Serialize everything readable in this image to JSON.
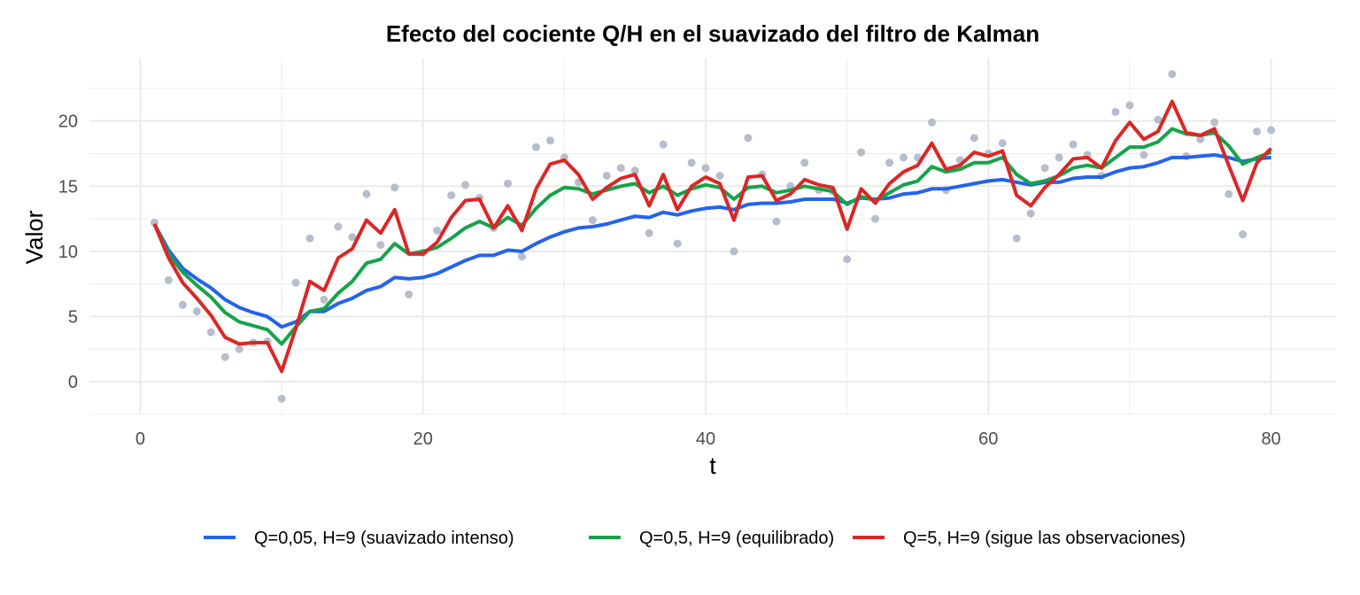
{
  "chart_data": {
    "type": "line",
    "title": "Efecto del cociente Q/H en el suavizado del filtro de Kalman",
    "xlabel": "t",
    "ylabel": "Valor",
    "xlim": [
      -3.6,
      84.6
    ],
    "ylim": [
      -2.5,
      24.8
    ],
    "xticks": [
      0,
      20,
      40,
      60,
      80
    ],
    "yticks": [
      0,
      5,
      10,
      15,
      20
    ],
    "grid": true,
    "legend_position": "bottom",
    "colors": {
      "observations": "#b7bdcb",
      "grid": "#ebebeb"
    },
    "observations": {
      "x": [
        1,
        2,
        3,
        4,
        5,
        6,
        7,
        8,
        9,
        10,
        11,
        12,
        13,
        14,
        15,
        16,
        17,
        18,
        19,
        20,
        21,
        22,
        23,
        24,
        25,
        26,
        27,
        28,
        29,
        30,
        31,
        32,
        33,
        34,
        35,
        36,
        37,
        38,
        39,
        40,
        41,
        42,
        43,
        44,
        45,
        46,
        47,
        48,
        49,
        50,
        51,
        52,
        53,
        54,
        55,
        56,
        57,
        58,
        59,
        60,
        61,
        62,
        63,
        64,
        65,
        66,
        67,
        68,
        69,
        70,
        71,
        72,
        73,
        74,
        75,
        76,
        77,
        78,
        79,
        80
      ],
      "y": [
        12.2,
        7.8,
        5.9,
        5.4,
        3.8,
        1.9,
        2.5,
        3.0,
        3.1,
        -1.3,
        7.6,
        11.0,
        6.3,
        11.9,
        11.1,
        14.4,
        10.5,
        14.9,
        6.7,
        9.9,
        11.6,
        14.3,
        15.1,
        14.1,
        11.8,
        15.2,
        9.6,
        18.0,
        18.5,
        17.2,
        15.3,
        12.4,
        15.8,
        16.4,
        16.2,
        11.4,
        18.2,
        10.6,
        16.8,
        16.4,
        15.8,
        10.0,
        18.7,
        15.9,
        12.3,
        15.0,
        16.8,
        14.7,
        14.6,
        9.4,
        17.6,
        12.5,
        16.8,
        17.2,
        17.2,
        19.9,
        14.7,
        17.0,
        18.7,
        17.5,
        18.3,
        11.0,
        12.9,
        16.4,
        17.2,
        18.2,
        17.4,
        15.8,
        20.7,
        21.2,
        17.4,
        20.1,
        23.6,
        17.3,
        18.6,
        19.9,
        14.4,
        11.3,
        19.2,
        19.3
      ]
    },
    "x": [
      1,
      2,
      3,
      4,
      5,
      6,
      7,
      8,
      9,
      10,
      11,
      12,
      13,
      14,
      15,
      16,
      17,
      18,
      19,
      20,
      21,
      22,
      23,
      24,
      25,
      26,
      27,
      28,
      29,
      30,
      31,
      32,
      33,
      34,
      35,
      36,
      37,
      38,
      39,
      40,
      41,
      42,
      43,
      44,
      45,
      46,
      47,
      48,
      49,
      50,
      51,
      52,
      53,
      54,
      55,
      56,
      57,
      58,
      59,
      60,
      61,
      62,
      63,
      64,
      65,
      66,
      67,
      68,
      69,
      70,
      71,
      72,
      73,
      74,
      75,
      76,
      77,
      78,
      79,
      80
    ],
    "series": [
      {
        "name": "Q=0,05, H=9 (suavizado intenso)",
        "color": "#2563eb",
        "values": [
          12.1,
          10.1,
          8.7,
          7.9,
          7.2,
          6.3,
          5.7,
          5.3,
          5.0,
          4.2,
          4.6,
          5.4,
          5.4,
          6.0,
          6.4,
          7.0,
          7.3,
          8.0,
          7.9,
          8.0,
          8.3,
          8.8,
          9.3,
          9.7,
          9.7,
          10.1,
          10.0,
          10.6,
          11.1,
          11.5,
          11.8,
          11.9,
          12.1,
          12.4,
          12.7,
          12.6,
          13.0,
          12.8,
          13.1,
          13.3,
          13.4,
          13.2,
          13.6,
          13.7,
          13.7,
          13.8,
          14.0,
          14.0,
          14.0,
          13.7,
          14.1,
          14.0,
          14.1,
          14.4,
          14.5,
          14.8,
          14.8,
          15.0,
          15.2,
          15.4,
          15.5,
          15.3,
          15.1,
          15.3,
          15.3,
          15.6,
          15.7,
          15.7,
          16.1,
          16.4,
          16.5,
          16.8,
          17.2,
          17.2,
          17.3,
          17.4,
          17.2,
          16.9,
          17.1,
          17.2
        ]
      },
      {
        "name": "Q=0,5, H=9 (equilibrado)",
        "color": "#16a34a",
        "values": [
          12.1,
          9.8,
          8.4,
          7.4,
          6.5,
          5.3,
          4.6,
          4.3,
          4.0,
          2.9,
          4.2,
          5.4,
          5.6,
          6.8,
          7.7,
          9.1,
          9.4,
          10.6,
          9.8,
          10.0,
          10.3,
          11.0,
          11.8,
          12.3,
          11.8,
          12.6,
          12.0,
          13.3,
          14.3,
          14.9,
          14.8,
          14.4,
          14.7,
          15.0,
          15.2,
          14.5,
          15.0,
          14.3,
          14.8,
          15.1,
          14.9,
          14.0,
          14.9,
          15.0,
          14.5,
          14.7,
          15.0,
          14.8,
          14.6,
          13.6,
          14.2,
          13.9,
          14.5,
          15.1,
          15.4,
          16.5,
          16.1,
          16.3,
          16.8,
          16.8,
          17.2,
          15.9,
          15.2,
          15.4,
          15.8,
          16.4,
          16.6,
          16.4,
          17.2,
          18.0,
          18.0,
          18.4,
          19.4,
          19.0,
          18.9,
          19.1,
          18.1,
          16.7,
          17.2,
          17.6
        ]
      },
      {
        "name": "Q=5, H=9 (sigue las observaciones)",
        "color": "#dc2626",
        "values": [
          12.1,
          9.5,
          7.6,
          6.4,
          5.1,
          3.4,
          2.9,
          3.0,
          3.0,
          0.8,
          4.1,
          7.7,
          7.0,
          9.5,
          10.2,
          12.4,
          11.4,
          13.2,
          9.8,
          9.8,
          10.7,
          12.6,
          13.9,
          14.0,
          11.8,
          13.5,
          11.6,
          14.8,
          16.7,
          17.0,
          15.9,
          14.0,
          14.9,
          15.6,
          15.9,
          13.5,
          15.9,
          13.2,
          15.0,
          15.7,
          15.2,
          12.4,
          15.7,
          15.8,
          13.9,
          14.4,
          15.5,
          15.1,
          14.9,
          11.7,
          14.8,
          13.7,
          15.2,
          16.1,
          16.6,
          18.3,
          16.3,
          16.6,
          17.6,
          17.3,
          17.7,
          14.3,
          13.5,
          14.9,
          15.9,
          17.1,
          17.2,
          16.4,
          18.5,
          19.9,
          18.6,
          19.2,
          21.5,
          19.1,
          18.9,
          19.4,
          16.6,
          13.9,
          16.8,
          17.9
        ]
      }
    ]
  }
}
